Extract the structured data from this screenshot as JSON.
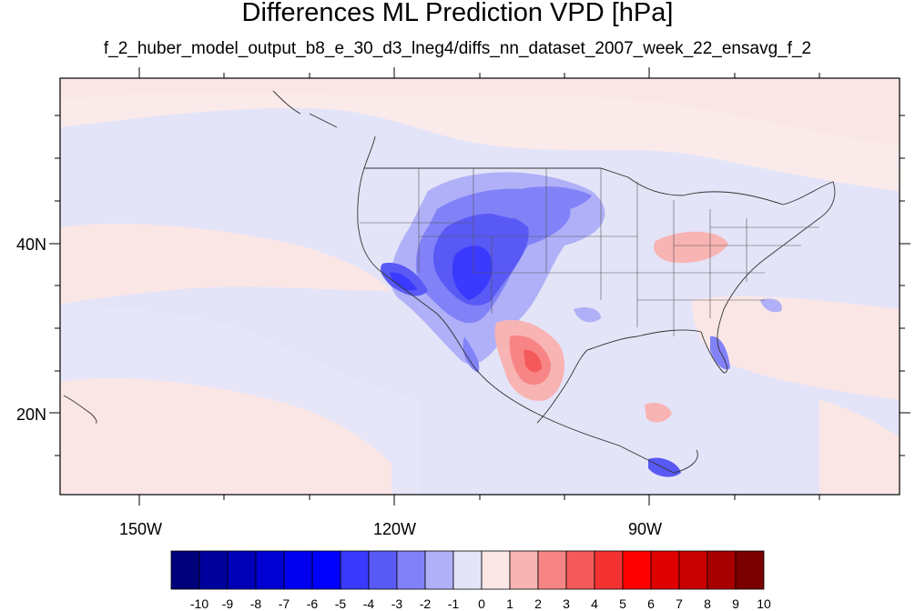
{
  "title": "Differences ML Prediction VPD [hPa]",
  "subtitle": "f_2_huber_model_output_b8_e_30_d3_lneg4/diffs_nn_dataset_2007_week_22_ensavg_f_2",
  "map": {
    "lat_labels": [
      "40N",
      "20N"
    ],
    "lon_labels": [
      "150W",
      "120W",
      "90W"
    ],
    "background_color": "#fbeaea"
  },
  "colorbar": {
    "labels": [
      "-10",
      "-9",
      "-8",
      "-7",
      "-6",
      "-5",
      "-4",
      "-3",
      "-2",
      "-1",
      "0",
      "1",
      "2",
      "3",
      "4",
      "5",
      "6",
      "7",
      "8",
      "9",
      "10"
    ],
    "colors": [
      "#00007a",
      "#00009c",
      "#0000b8",
      "#0000d2",
      "#0000ee",
      "#0000ff",
      "#3a3aff",
      "#5959f6",
      "#8282f8",
      "#b0b0f8",
      "#e4e4f8",
      "#fbe6e6",
      "#f8b3b3",
      "#f88585",
      "#f55a5a",
      "#f53232",
      "#ff0000",
      "#e00000",
      "#c80000",
      "#a80000",
      "#7a0000"
    ]
  }
}
